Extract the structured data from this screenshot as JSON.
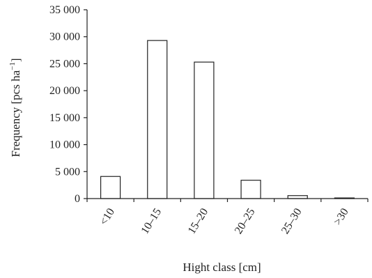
{
  "chart_data": {
    "type": "bar",
    "title": "",
    "xlabel": "Hight class [cm]",
    "ylabel": "Frequency [pcs ha",
    "ylabel_superscript": "−1",
    "ylabel_suffix": "]",
    "categories": [
      "<10",
      "10–15",
      "15–20",
      "20–25",
      "25–30",
      ">30"
    ],
    "values": [
      4100,
      29300,
      25300,
      3400,
      550,
      120
    ],
    "ylim": [
      0,
      35000
    ],
    "yticks": [
      0,
      5000,
      10000,
      15000,
      20000,
      25000,
      30000,
      35000
    ],
    "ytick_labels": [
      "0",
      "5 000",
      "10 000",
      "15 000",
      "20 000",
      "25 000",
      "30 000",
      "35 000"
    ],
    "grid": false,
    "legend": "none",
    "colors": {
      "bar_fill": "#ffffff",
      "bar_stroke": "#222222"
    }
  }
}
